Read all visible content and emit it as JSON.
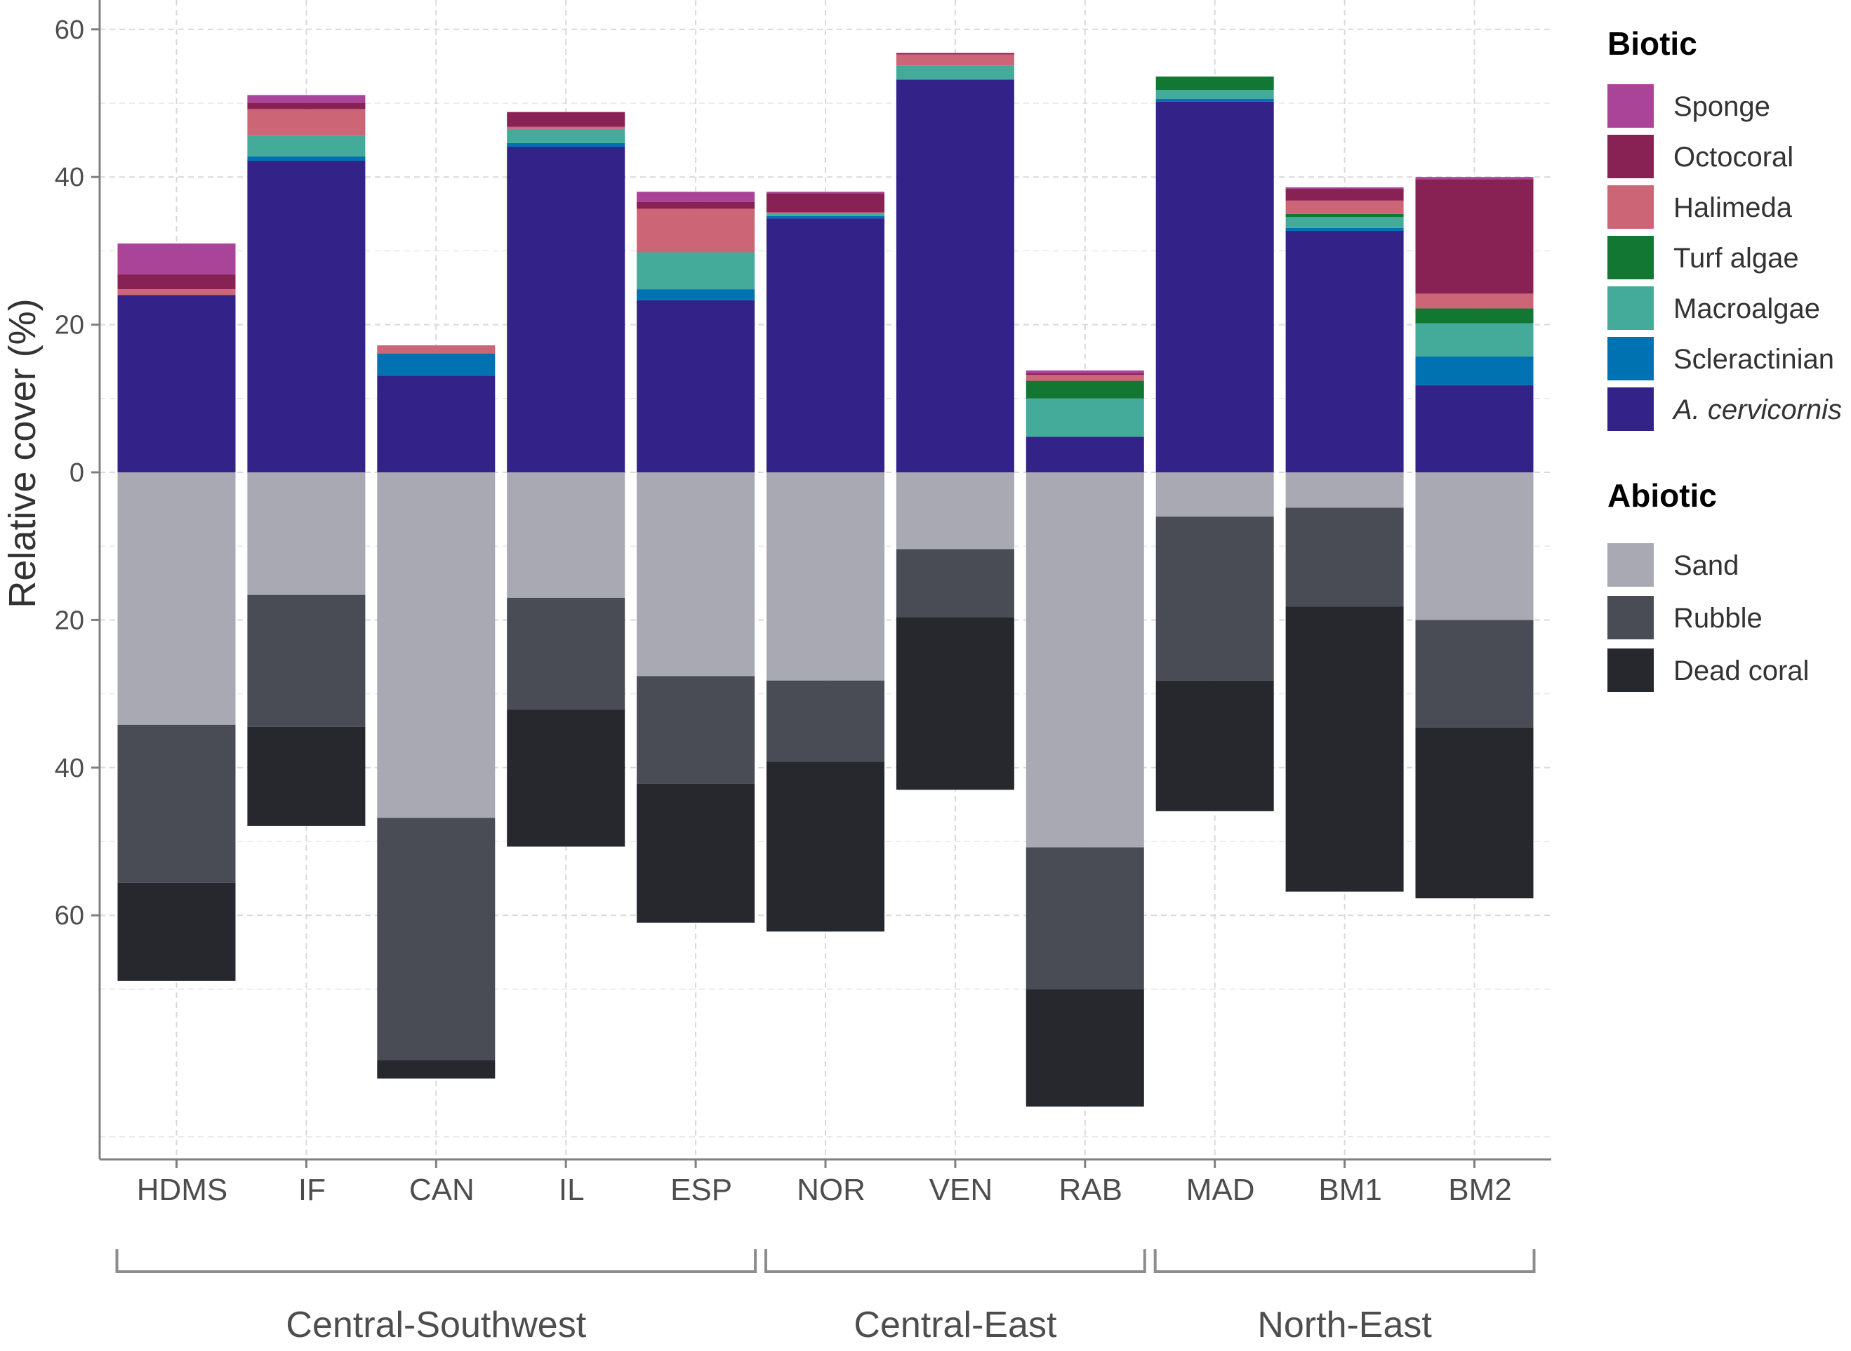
{
  "chart_data": {
    "type": "bar",
    "stacked": true,
    "diverging": true,
    "ylabel": "Relative cover (%)",
    "y_tick_labels": [
      "60",
      "40",
      "20",
      "0",
      "20",
      "40",
      "60"
    ],
    "y_tick_values": [
      60,
      40,
      20,
      0,
      -20,
      -40,
      -60
    ],
    "ylim": [
      -92,
      62
    ],
    "grid": true,
    "legend_position": "right",
    "categories": [
      "HDMS",
      "IF",
      "CAN",
      "IL",
      "ESP",
      "NOR",
      "VEN",
      "RAB",
      "MAD",
      "BM1",
      "BM2"
    ],
    "groups": [
      {
        "label": "Central-Southwest",
        "categories": [
          "HDMS",
          "IF",
          "CAN",
          "IL",
          "ESP"
        ]
      },
      {
        "label": "Central-East",
        "categories": [
          "NOR",
          "VEN",
          "RAB"
        ]
      },
      {
        "label": "North-East",
        "categories": [
          "MAD",
          "BM1",
          "BM2"
        ]
      }
    ],
    "biotic_title": "Biotic",
    "abiotic_title": "Abiotic",
    "biotic_series": [
      {
        "name": "A. cervicornis",
        "color": "#332288",
        "values": [
          24.0,
          42.2,
          13.1,
          44.1,
          23.3,
          34.4,
          53.2,
          4.8,
          50.2,
          32.7,
          11.8
        ]
      },
      {
        "name": "Scleractinian",
        "color": "#0072B2",
        "values": [
          0.0,
          0.6,
          3.0,
          0.5,
          1.5,
          0.3,
          0.0,
          0.0,
          0.4,
          0.4,
          3.9
        ]
      },
      {
        "name": "Macroalgae",
        "color": "#44AA99",
        "values": [
          0.0,
          2.8,
          0.0,
          1.9,
          5.0,
          0.4,
          1.9,
          5.2,
          1.2,
          1.5,
          4.5
        ]
      },
      {
        "name": "Turf algae",
        "color": "#117733",
        "values": [
          0.0,
          0.0,
          0.0,
          0.0,
          0.0,
          0.0,
          0.0,
          2.4,
          1.8,
          0.4,
          2.0
        ]
      },
      {
        "name": "Halimeda",
        "color": "#CC6677",
        "values": [
          0.8,
          3.6,
          1.1,
          0.3,
          5.9,
          0.1,
          1.5,
          0.8,
          0.0,
          1.8,
          2.0
        ]
      },
      {
        "name": "Octocoral",
        "color": "#882255",
        "values": [
          2.0,
          0.8,
          0.0,
          2.0,
          0.9,
          2.6,
          0.2,
          0.2,
          0.0,
          1.6,
          15.5
        ]
      },
      {
        "name": "Sponge",
        "color": "#AA4499",
        "values": [
          4.2,
          1.1,
          0.0,
          0.0,
          1.4,
          0.2,
          0.0,
          0.4,
          0.0,
          0.2,
          0.3
        ]
      }
    ],
    "abiotic_series": [
      {
        "name": "Sand",
        "color": "#A8A9B2",
        "values": [
          34.2,
          16.6,
          46.8,
          17.0,
          27.6,
          28.2,
          10.4,
          50.8,
          6.0,
          4.8,
          20.0
        ]
      },
      {
        "name": "Rubble",
        "color": "#4A4C55",
        "values": [
          21.4,
          17.9,
          32.8,
          15.1,
          14.6,
          11.0,
          9.2,
          19.2,
          22.2,
          13.4,
          14.6
        ]
      },
      {
        "name": "Dead coral",
        "color": "#27282D",
        "values": [
          13.3,
          13.4,
          2.5,
          18.6,
          18.8,
          23.0,
          23.4,
          15.9,
          17.7,
          38.6,
          23.1
        ]
      }
    ]
  }
}
